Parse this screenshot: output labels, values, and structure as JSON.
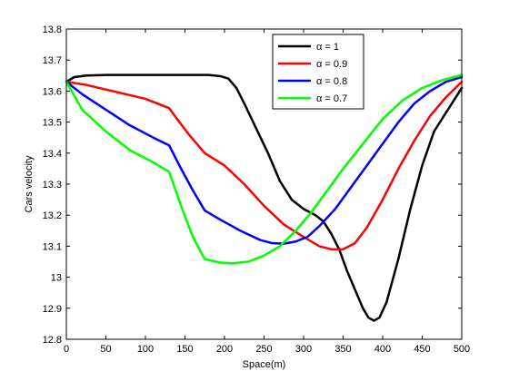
{
  "chart_data": {
    "type": "line",
    "title": "",
    "xlabel": "Space(m)",
    "ylabel": "Cars velocity",
    "xlim": [
      0,
      500
    ],
    "ylim": [
      12.8,
      13.8
    ],
    "xticks": [
      0,
      50,
      100,
      150,
      200,
      250,
      300,
      350,
      400,
      450,
      500
    ],
    "yticks": [
      12.8,
      12.9,
      13,
      13.1,
      13.2,
      13.3,
      13.4,
      13.5,
      13.6,
      13.7,
      13.8
    ],
    "xtick_labels": [
      "0",
      "50",
      "100",
      "150",
      "200",
      "250",
      "300",
      "350",
      "400",
      "450",
      "500"
    ],
    "ytick_labels": [
      "12.8",
      "12.9",
      "13",
      "13.1",
      "13.2",
      "13.3",
      "13.4",
      "13.5",
      "13.6",
      "13.7",
      "13.8"
    ],
    "grid": false,
    "legend_position": "top-right",
    "series": [
      {
        "name": "α = 1",
        "color": "#000000",
        "points": [
          [
            0,
            13.63
          ],
          [
            10,
            13.645
          ],
          [
            25,
            13.65
          ],
          [
            50,
            13.652
          ],
          [
            100,
            13.652
          ],
          [
            150,
            13.652
          ],
          [
            180,
            13.652
          ],
          [
            195,
            13.648
          ],
          [
            205,
            13.64
          ],
          [
            215,
            13.61
          ],
          [
            225,
            13.56
          ],
          [
            240,
            13.48
          ],
          [
            255,
            13.4
          ],
          [
            270,
            13.31
          ],
          [
            285,
            13.25
          ],
          [
            300,
            13.22
          ],
          [
            315,
            13.2
          ],
          [
            325,
            13.18
          ],
          [
            335,
            13.14
          ],
          [
            345,
            13.09
          ],
          [
            355,
            13.02
          ],
          [
            365,
            12.96
          ],
          [
            375,
            12.9
          ],
          [
            382,
            12.87
          ],
          [
            389,
            12.86
          ],
          [
            396,
            12.87
          ],
          [
            405,
            12.92
          ],
          [
            420,
            13.06
          ],
          [
            435,
            13.22
          ],
          [
            450,
            13.36
          ],
          [
            465,
            13.47
          ],
          [
            480,
            13.53
          ],
          [
            490,
            13.57
          ],
          [
            500,
            13.61
          ]
        ]
      },
      {
        "name": "α = 0.9",
        "color": "#ff0000",
        "points": [
          [
            0,
            13.63
          ],
          [
            25,
            13.62
          ],
          [
            50,
            13.605
          ],
          [
            75,
            13.59
          ],
          [
            100,
            13.575
          ],
          [
            115,
            13.56
          ],
          [
            130,
            13.545
          ],
          [
            140,
            13.51
          ],
          [
            155,
            13.46
          ],
          [
            175,
            13.4
          ],
          [
            200,
            13.36
          ],
          [
            225,
            13.3
          ],
          [
            250,
            13.23
          ],
          [
            275,
            13.17
          ],
          [
            300,
            13.13
          ],
          [
            320,
            13.1
          ],
          [
            335,
            13.09
          ],
          [
            350,
            13.09
          ],
          [
            365,
            13.11
          ],
          [
            380,
            13.16
          ],
          [
            400,
            13.25
          ],
          [
            420,
            13.35
          ],
          [
            440,
            13.44
          ],
          [
            460,
            13.52
          ],
          [
            480,
            13.58
          ],
          [
            500,
            13.63
          ]
        ]
      },
      {
        "name": "α = 0.8",
        "color": "#0000ff",
        "points": [
          [
            0,
            13.63
          ],
          [
            20,
            13.59
          ],
          [
            50,
            13.54
          ],
          [
            80,
            13.49
          ],
          [
            110,
            13.45
          ],
          [
            130,
            13.425
          ],
          [
            145,
            13.35
          ],
          [
            160,
            13.28
          ],
          [
            175,
            13.215
          ],
          [
            195,
            13.185
          ],
          [
            220,
            13.15
          ],
          [
            245,
            13.12
          ],
          [
            260,
            13.11
          ],
          [
            275,
            13.108
          ],
          [
            290,
            13.115
          ],
          [
            305,
            13.13
          ],
          [
            320,
            13.165
          ],
          [
            340,
            13.22
          ],
          [
            360,
            13.29
          ],
          [
            380,
            13.36
          ],
          [
            400,
            13.43
          ],
          [
            420,
            13.5
          ],
          [
            440,
            13.56
          ],
          [
            460,
            13.6
          ],
          [
            480,
            13.63
          ],
          [
            500,
            13.645
          ]
        ]
      },
      {
        "name": "α = 0.7",
        "color": "#00ff00",
        "points": [
          [
            0,
            13.63
          ],
          [
            20,
            13.54
          ],
          [
            50,
            13.47
          ],
          [
            80,
            13.41
          ],
          [
            110,
            13.37
          ],
          [
            130,
            13.34
          ],
          [
            145,
            13.23
          ],
          [
            160,
            13.13
          ],
          [
            175,
            13.058
          ],
          [
            195,
            13.047
          ],
          [
            210,
            13.045
          ],
          [
            230,
            13.05
          ],
          [
            250,
            13.07
          ],
          [
            270,
            13.1
          ],
          [
            290,
            13.15
          ],
          [
            310,
            13.21
          ],
          [
            330,
            13.28
          ],
          [
            350,
            13.35
          ],
          [
            375,
            13.43
          ],
          [
            400,
            13.51
          ],
          [
            425,
            13.57
          ],
          [
            450,
            13.61
          ],
          [
            475,
            13.635
          ],
          [
            500,
            13.652
          ]
        ]
      }
    ]
  }
}
